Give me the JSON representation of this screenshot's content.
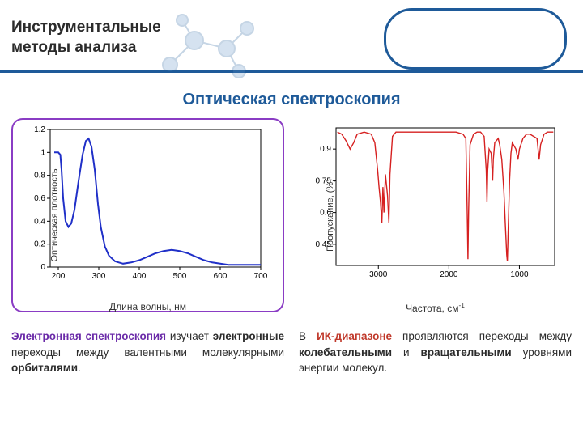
{
  "header": {
    "title_line1": "Инструментальные",
    "title_line2": "методы анализа"
  },
  "subtitle": "Оптическая спектроскопия",
  "left_chart": {
    "type": "line",
    "ylabel": "Оптическая плотность",
    "xlabel": "Длина волны, нм",
    "xlim": [
      180,
      700
    ],
    "xtick_step": 100,
    "ylim": [
      0,
      1.2
    ],
    "ytick_step": 0.2,
    "line_color": "#2030c8",
    "line_width": 2,
    "background_color": "#ffffff",
    "axis_color": "#000000",
    "tick_fontsize": 10,
    "frame_border_color": "#8a3cc4",
    "series": [
      [
        190,
        1.0
      ],
      [
        195,
        1.0
      ],
      [
        200,
        1.0
      ],
      [
        205,
        0.98
      ],
      [
        208,
        0.85
      ],
      [
        212,
        0.6
      ],
      [
        218,
        0.4
      ],
      [
        225,
        0.35
      ],
      [
        232,
        0.38
      ],
      [
        240,
        0.5
      ],
      [
        250,
        0.75
      ],
      [
        260,
        0.98
      ],
      [
        268,
        1.1
      ],
      [
        275,
        1.12
      ],
      [
        282,
        1.05
      ],
      [
        290,
        0.85
      ],
      [
        298,
        0.55
      ],
      [
        305,
        0.35
      ],
      [
        315,
        0.18
      ],
      [
        325,
        0.1
      ],
      [
        340,
        0.05
      ],
      [
        360,
        0.03
      ],
      [
        380,
        0.04
      ],
      [
        400,
        0.06
      ],
      [
        420,
        0.09
      ],
      [
        440,
        0.12
      ],
      [
        460,
        0.14
      ],
      [
        480,
        0.15
      ],
      [
        500,
        0.14
      ],
      [
        520,
        0.12
      ],
      [
        540,
        0.09
      ],
      [
        560,
        0.06
      ],
      [
        580,
        0.04
      ],
      [
        600,
        0.03
      ],
      [
        620,
        0.02
      ],
      [
        650,
        0.02
      ],
      [
        700,
        0.02
      ]
    ]
  },
  "left_caption": {
    "hl": "Электронная спектроскопия",
    "t1": " изучает ",
    "b1": "электронные",
    "t2": " переходы между валентными молекуляр­ными ",
    "b2": "орбиталями",
    "t3": "."
  },
  "right_chart": {
    "type": "line",
    "ylabel": "Пропускание, (%)",
    "xlabel_prefix": "Частота, см",
    "xlim": [
      3600,
      500
    ],
    "xticks": [
      3000,
      2000,
      1000
    ],
    "ylim": [
      0.35,
      1.0
    ],
    "yticks": [
      0.45,
      0.6,
      0.75,
      0.9
    ],
    "line_color": "#d62020",
    "line_width": 1.4,
    "background_color": "#ffffff",
    "axis_color": "#000000",
    "tick_fontsize": 10,
    "series": [
      [
        3580,
        0.98
      ],
      [
        3520,
        0.97
      ],
      [
        3460,
        0.94
      ],
      [
        3400,
        0.9
      ],
      [
        3350,
        0.93
      ],
      [
        3300,
        0.97
      ],
      [
        3200,
        0.98
      ],
      [
        3100,
        0.97
      ],
      [
        3050,
        0.93
      ],
      [
        3010,
        0.8
      ],
      [
        2990,
        0.72
      ],
      [
        2970,
        0.65
      ],
      [
        2950,
        0.55
      ],
      [
        2935,
        0.72
      ],
      [
        2920,
        0.6
      ],
      [
        2900,
        0.78
      ],
      [
        2870,
        0.68
      ],
      [
        2850,
        0.55
      ],
      [
        2835,
        0.78
      ],
      [
        2800,
        0.96
      ],
      [
        2750,
        0.98
      ],
      [
        2700,
        0.98
      ],
      [
        2500,
        0.98
      ],
      [
        2300,
        0.98
      ],
      [
        2100,
        0.98
      ],
      [
        1900,
        0.98
      ],
      [
        1800,
        0.97
      ],
      [
        1760,
        0.95
      ],
      [
        1740,
        0.6
      ],
      [
        1730,
        0.38
      ],
      [
        1720,
        0.6
      ],
      [
        1700,
        0.92
      ],
      [
        1650,
        0.97
      ],
      [
        1600,
        0.98
      ],
      [
        1550,
        0.98
      ],
      [
        1500,
        0.96
      ],
      [
        1470,
        0.8
      ],
      [
        1460,
        0.65
      ],
      [
        1450,
        0.8
      ],
      [
        1430,
        0.9
      ],
      [
        1400,
        0.88
      ],
      [
        1380,
        0.75
      ],
      [
        1370,
        0.85
      ],
      [
        1350,
        0.93
      ],
      [
        1300,
        0.95
      ],
      [
        1280,
        0.92
      ],
      [
        1250,
        0.85
      ],
      [
        1220,
        0.7
      ],
      [
        1200,
        0.55
      ],
      [
        1180,
        0.4
      ],
      [
        1170,
        0.37
      ],
      [
        1160,
        0.5
      ],
      [
        1140,
        0.75
      ],
      [
        1120,
        0.88
      ],
      [
        1100,
        0.93
      ],
      [
        1050,
        0.9
      ],
      [
        1020,
        0.85
      ],
      [
        1000,
        0.9
      ],
      [
        950,
        0.95
      ],
      [
        900,
        0.97
      ],
      [
        850,
        0.97
      ],
      [
        800,
        0.96
      ],
      [
        750,
        0.95
      ],
      [
        720,
        0.85
      ],
      [
        700,
        0.92
      ],
      [
        650,
        0.97
      ],
      [
        600,
        0.98
      ],
      [
        550,
        0.98
      ],
      [
        520,
        0.98
      ]
    ]
  },
  "right_caption": {
    "t1": "В ",
    "hl": "ИК-диапазоне",
    "t2": " проявляются переходы между ",
    "b1": "колебательными",
    "t3": " и ",
    "b2": "вращательными",
    "t4": " уровнями энергии молекул."
  }
}
